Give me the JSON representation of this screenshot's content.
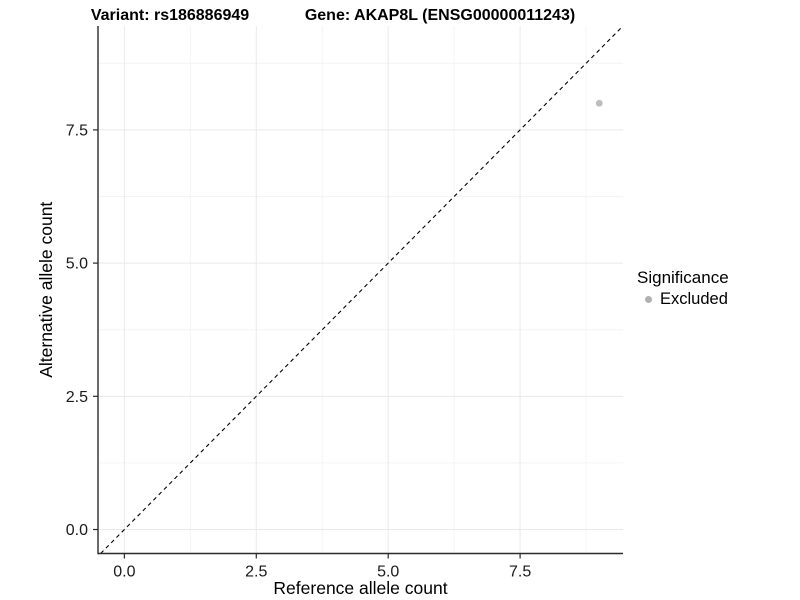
{
  "chart_data": {
    "type": "scatter",
    "titles": {
      "left": "Variant: rs186886949",
      "right": "Gene: AKAP8L (ENSG00000011243)"
    },
    "xlabel": "Reference allele count",
    "ylabel": "Alternative allele count",
    "xlim": [
      -0.5,
      9.45
    ],
    "ylim": [
      -0.45,
      9.45
    ],
    "x_major_ticks": [
      0,
      2.5,
      5,
      7.5
    ],
    "x_tick_labels": [
      "0.0",
      "2.5",
      "5.0",
      "7.5"
    ],
    "y_major_ticks": [
      0,
      2.5,
      5,
      7.5
    ],
    "y_tick_labels": [
      "0.0",
      "2.5",
      "5.0",
      "7.5"
    ],
    "x_minor_ticks": [
      1.25,
      3.75,
      6.25,
      8.75
    ],
    "y_minor_ticks": [
      1.25,
      3.75,
      6.25,
      8.75
    ],
    "grid": {
      "major_color": "#e9e9e9",
      "minor_color": "#f4f4f4",
      "shown": true
    },
    "identity_line": {
      "style": "dashed",
      "color": "#000000",
      "from": -0.45,
      "to": 9.45
    },
    "series": [
      {
        "name": "Excluded",
        "color": "#bdbdbd",
        "points": [
          {
            "x": 9,
            "y": 8
          }
        ]
      }
    ],
    "legend": {
      "title": "Significance",
      "position": "right",
      "entries": [
        {
          "label": "Excluded",
          "color": "#b0b0b0"
        }
      ]
    },
    "colors": {
      "axis_line": "#2b2b2b",
      "tick_label": "#1a1a1a",
      "axis_title": "#000000"
    }
  }
}
